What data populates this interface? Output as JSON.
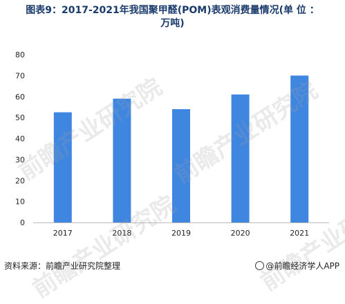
{
  "chart_data": {
    "type": "bar",
    "title_line1": "图表9：2017-2021年我国聚甲醛(POM)表观消费量情况(单 位 ：",
    "title_line2": "万吨)",
    "categories": [
      "2017",
      "2018",
      "2019",
      "2020",
      "2021"
    ],
    "values": [
      52.5,
      59,
      54,
      61,
      70
    ],
    "ylim": [
      0,
      80
    ],
    "yticks": [
      0,
      10,
      20,
      30,
      40,
      50,
      60,
      70,
      80
    ],
    "bar_color": "#3f86e0",
    "grid": false
  },
  "footer": {
    "source": "资料来源：前瞻产业研究院整理",
    "brand": "@前瞻经济学人APP"
  },
  "watermark": {
    "text": "前瞻产业研究院"
  }
}
